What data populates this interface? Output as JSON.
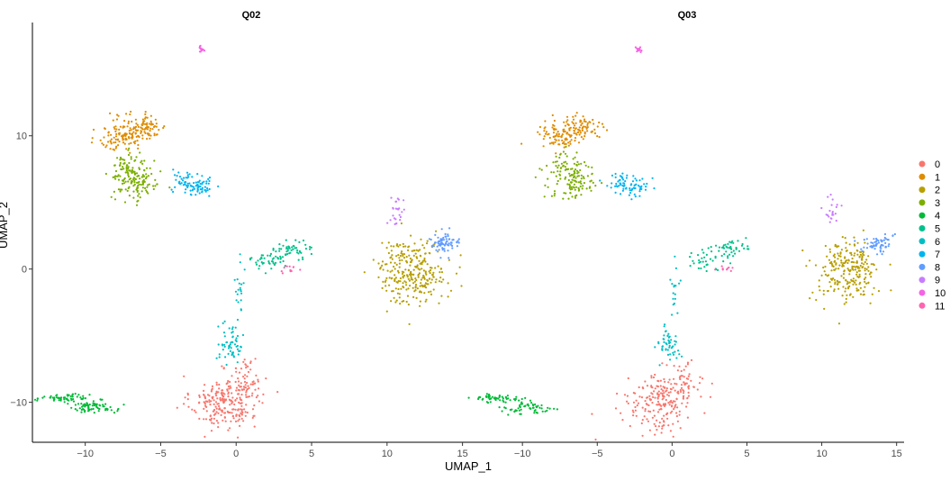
{
  "chart_data": {
    "type": "scatter",
    "xlabel": "UMAP_1",
    "ylabel": "UMAP_2",
    "xlim": [
      -13.5,
      15.5
    ],
    "ylim": [
      -13,
      18.5
    ],
    "x_ticks": [
      -10,
      -5,
      0,
      5,
      10,
      15
    ],
    "y_ticks": [
      -10,
      0,
      10
    ],
    "grid": false,
    "legend_position": "right",
    "panels": [
      {
        "title": "Q02",
        "density": 1.0
      },
      {
        "title": "Q03",
        "density": 0.85
      }
    ],
    "clusters": [
      {
        "name": "0",
        "color": "#F8766D",
        "blobs": [
          {
            "cx": -0.8,
            "cy": -10.0,
            "sx": 1.1,
            "sy": 1.0,
            "n": 230
          },
          {
            "cx": 0.7,
            "cy": -8.5,
            "sx": 0.5,
            "sy": 0.9,
            "n": 60
          }
        ]
      },
      {
        "name": "1",
        "color": "#DE8C00",
        "blobs": [
          {
            "cx": -7.5,
            "cy": 10.0,
            "sx": 0.8,
            "sy": 0.6,
            "n": 110
          },
          {
            "cx": -6.0,
            "cy": 10.7,
            "sx": 0.7,
            "sy": 0.5,
            "n": 80
          }
        ]
      },
      {
        "name": "2",
        "color": "#B79F00",
        "blobs": [
          {
            "cx": 11.7,
            "cy": -0.2,
            "sx": 1.1,
            "sy": 1.2,
            "n": 280
          }
        ]
      },
      {
        "name": "3",
        "color": "#7CAE00",
        "blobs": [
          {
            "cx": -7.0,
            "cy": 7.5,
            "sx": 0.7,
            "sy": 0.6,
            "n": 90
          },
          {
            "cx": -6.5,
            "cy": 6.2,
            "sx": 0.8,
            "sy": 0.6,
            "n": 80
          }
        ]
      },
      {
        "name": "4",
        "color": "#00BA38",
        "blobs": [
          {
            "cx": -11.5,
            "cy": -9.7,
            "sx": 0.9,
            "sy": 0.15,
            "n": 60
          },
          {
            "cx": -9.5,
            "cy": -10.4,
            "sx": 0.8,
            "sy": 0.25,
            "n": 70
          }
        ]
      },
      {
        "name": "5",
        "color": "#00C08B",
        "blobs": [
          {
            "cx": 3.8,
            "cy": 1.5,
            "sx": 0.6,
            "sy": 0.3,
            "n": 50
          },
          {
            "cx": 2.0,
            "cy": 0.6,
            "sx": 0.6,
            "sy": 0.4,
            "n": 40
          }
        ]
      },
      {
        "name": "6",
        "color": "#00BFC4",
        "blobs": [
          {
            "cx": -0.3,
            "cy": -5.5,
            "sx": 0.4,
            "sy": 0.7,
            "n": 60
          },
          {
            "cx": 0.3,
            "cy": -1.5,
            "sx": 0.2,
            "sy": 1.0,
            "n": 20
          }
        ]
      },
      {
        "name": "7",
        "color": "#00B4F0",
        "blobs": [
          {
            "cx": -2.5,
            "cy": 6.2,
            "sx": 0.5,
            "sy": 0.4,
            "n": 60
          },
          {
            "cx": -3.5,
            "cy": 6.6,
            "sx": 0.4,
            "sy": 0.4,
            "n": 30
          }
        ]
      },
      {
        "name": "8",
        "color": "#619CFF",
        "blobs": [
          {
            "cx": 13.8,
            "cy": 1.9,
            "sx": 0.5,
            "sy": 0.35,
            "n": 70
          }
        ]
      },
      {
        "name": "9",
        "color": "#C77CFF",
        "blobs": [
          {
            "cx": 10.6,
            "cy": 4.3,
            "sx": 0.3,
            "sy": 0.6,
            "n": 25
          }
        ]
      },
      {
        "name": "10",
        "color": "#F564E3",
        "blobs": [
          {
            "cx": -2.3,
            "cy": 16.5,
            "sx": 0.1,
            "sy": 0.15,
            "n": 15
          }
        ]
      },
      {
        "name": "11",
        "color": "#FF64B0",
        "blobs": [
          {
            "cx": 3.5,
            "cy": 0.0,
            "sx": 0.3,
            "sy": 0.15,
            "n": 12
          }
        ]
      }
    ]
  }
}
